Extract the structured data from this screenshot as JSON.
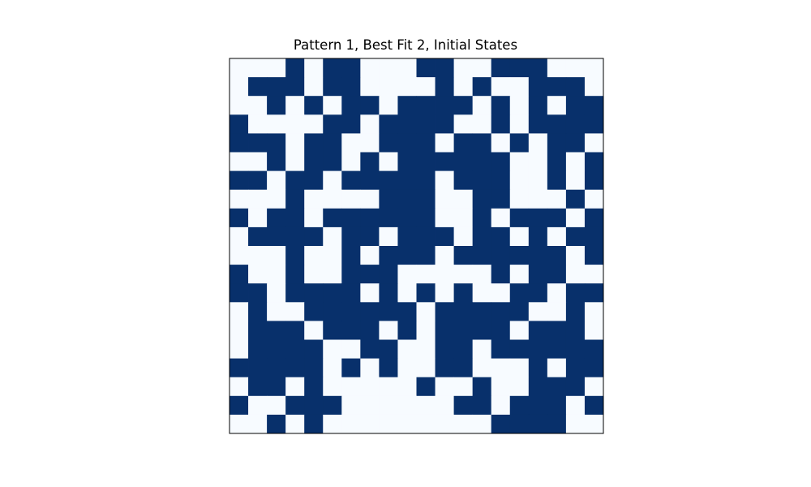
{
  "chart_data": {
    "type": "heatmap",
    "title": "Pattern 1, Best Fit 2, Initial States",
    "colors": {
      "one": "#08306b",
      "zero": "#f7fbff",
      "frame": "#000000"
    },
    "rows": 20,
    "cols": 20,
    "grid": [
      [
        0,
        0,
        0,
        1,
        0,
        1,
        1,
        0,
        0,
        0,
        1,
        1,
        0,
        0,
        1,
        1,
        1,
        0,
        0,
        0
      ],
      [
        0,
        1,
        1,
        1,
        0,
        1,
        1,
        0,
        0,
        0,
        0,
        1,
        0,
        1,
        0,
        0,
        1,
        1,
        1,
        0
      ],
      [
        0,
        0,
        1,
        0,
        1,
        0,
        1,
        1,
        0,
        1,
        1,
        1,
        1,
        0,
        1,
        0,
        1,
        0,
        1,
        1
      ],
      [
        1,
        0,
        0,
        0,
        0,
        1,
        1,
        0,
        1,
        1,
        1,
        1,
        0,
        0,
        1,
        0,
        1,
        1,
        1,
        1
      ],
      [
        1,
        1,
        1,
        0,
        1,
        1,
        0,
        0,
        1,
        1,
        1,
        0,
        1,
        1,
        0,
        1,
        0,
        1,
        1,
        0
      ],
      [
        0,
        0,
        1,
        0,
        1,
        1,
        0,
        1,
        0,
        1,
        1,
        1,
        1,
        1,
        1,
        0,
        0,
        1,
        0,
        1
      ],
      [
        1,
        1,
        0,
        1,
        1,
        0,
        1,
        1,
        1,
        1,
        1,
        0,
        1,
        1,
        1,
        0,
        0,
        1,
        0,
        1
      ],
      [
        0,
        0,
        0,
        1,
        0,
        0,
        0,
        0,
        1,
        1,
        1,
        0,
        0,
        1,
        1,
        0,
        0,
        0,
        1,
        0
      ],
      [
        1,
        0,
        1,
        1,
        0,
        1,
        1,
        1,
        1,
        1,
        1,
        0,
        0,
        1,
        0,
        1,
        1,
        1,
        0,
        1
      ],
      [
        0,
        1,
        1,
        1,
        1,
        0,
        1,
        1,
        0,
        1,
        1,
        1,
        0,
        1,
        1,
        0,
        1,
        0,
        1,
        1
      ],
      [
        0,
        0,
        0,
        1,
        0,
        0,
        1,
        0,
        1,
        1,
        1,
        0,
        1,
        1,
        1,
        1,
        1,
        1,
        0,
        1
      ],
      [
        1,
        0,
        0,
        1,
        0,
        0,
        1,
        1,
        1,
        0,
        0,
        0,
        0,
        0,
        1,
        0,
        1,
        1,
        0,
        0
      ],
      [
        1,
        1,
        0,
        1,
        1,
        1,
        1,
        0,
        1,
        0,
        1,
        0,
        1,
        0,
        0,
        1,
        1,
        0,
        1,
        1
      ],
      [
        0,
        1,
        0,
        0,
        1,
        1,
        1,
        1,
        1,
        1,
        0,
        1,
        1,
        1,
        1,
        1,
        0,
        0,
        1,
        0
      ],
      [
        0,
        1,
        1,
        1,
        0,
        1,
        1,
        1,
        0,
        1,
        0,
        1,
        1,
        1,
        1,
        0,
        1,
        1,
        1,
        0
      ],
      [
        0,
        1,
        1,
        1,
        1,
        0,
        0,
        1,
        1,
        0,
        0,
        1,
        1,
        0,
        1,
        1,
        1,
        1,
        1,
        1
      ],
      [
        1,
        1,
        1,
        1,
        1,
        0,
        1,
        0,
        1,
        0,
        0,
        1,
        1,
        0,
        0,
        0,
        1,
        0,
        1,
        1
      ],
      [
        0,
        1,
        1,
        0,
        1,
        0,
        0,
        0,
        0,
        0,
        1,
        0,
        0,
        1,
        0,
        0,
        1,
        1,
        1,
        0
      ],
      [
        1,
        0,
        0,
        1,
        1,
        1,
        0,
        0,
        0,
        0,
        0,
        0,
        1,
        1,
        0,
        1,
        1,
        1,
        0,
        1
      ],
      [
        0,
        0,
        1,
        0,
        1,
        0,
        0,
        0,
        0,
        0,
        0,
        0,
        0,
        0,
        1,
        1,
        1,
        1,
        0,
        0
      ]
    ]
  }
}
